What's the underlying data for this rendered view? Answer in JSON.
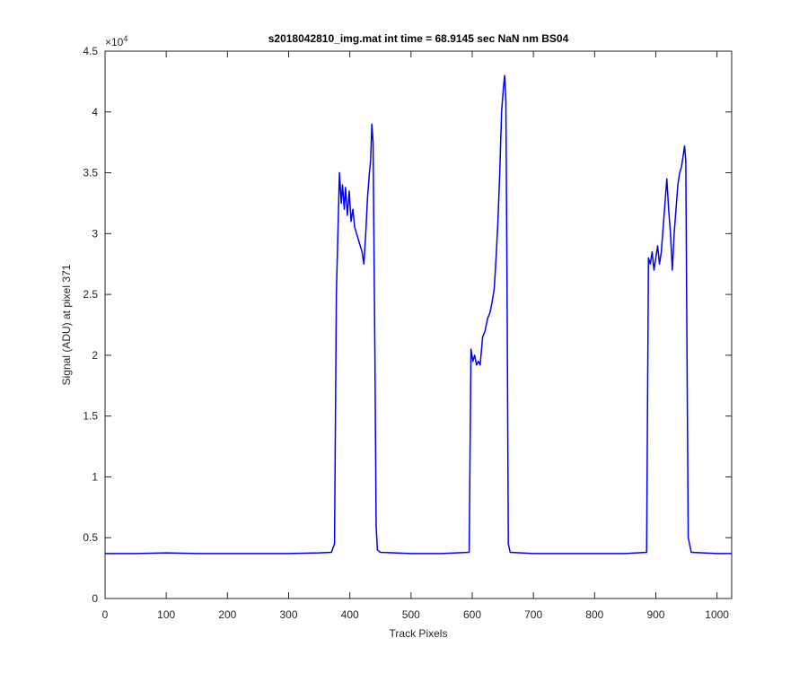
{
  "chart_data": {
    "type": "line",
    "title": "s2018042810_img.mat int time = 68.9145 sec  NaN nm BS04",
    "x_label": "Track Pixels",
    "y_label": "Signal (ADU) at pixel 371",
    "y_multiplier": {
      "base": "×10",
      "exponent": "4"
    },
    "xlim": [
      0,
      1024
    ],
    "ylim": [
      0,
      4.5
    ],
    "xticks": [
      0,
      100,
      200,
      300,
      400,
      500,
      600,
      700,
      800,
      900,
      1000
    ],
    "yticks": [
      0,
      0.5,
      1,
      1.5,
      2,
      2.5,
      3,
      3.5,
      4,
      4.5
    ],
    "grid": false,
    "series": [
      {
        "color": "#0000ff",
        "x": [
          0,
          50,
          100,
          150,
          200,
          250,
          300,
          350,
          370,
          375,
          378,
          381,
          383,
          386,
          388,
          391,
          393,
          396,
          399,
          402,
          405,
          408,
          411,
          414,
          417,
          420,
          423,
          426,
          429,
          432,
          434,
          436,
          438,
          441,
          443,
          445,
          450,
          500,
          550,
          595,
          598,
          601,
          604,
          607,
          610,
          613,
          617,
          621,
          625,
          629,
          633,
          636,
          639,
          642,
          645,
          648,
          651,
          653,
          655,
          657,
          659,
          662,
          700,
          750,
          800,
          850,
          885,
          888,
          891,
          894,
          897,
          900,
          903,
          906,
          909,
          912,
          915,
          918,
          921,
          924,
          927,
          930,
          933,
          936,
          939,
          942,
          945,
          947,
          949,
          951,
          953,
          958,
          1000,
          1024
        ],
        "values": [
          0.37,
          0.37,
          0.375,
          0.37,
          0.37,
          0.37,
          0.37,
          0.375,
          0.38,
          0.45,
          2.5,
          3.1,
          3.5,
          3.25,
          3.4,
          3.2,
          3.38,
          3.15,
          3.35,
          3.1,
          3.2,
          3.05,
          3.0,
          2.95,
          2.9,
          2.85,
          2.75,
          3.0,
          3.3,
          3.5,
          3.6,
          3.9,
          3.75,
          2.0,
          0.6,
          0.4,
          0.38,
          0.37,
          0.37,
          0.38,
          2.05,
          1.95,
          2.0,
          1.92,
          1.95,
          1.92,
          2.15,
          2.2,
          2.3,
          2.35,
          2.45,
          2.55,
          2.8,
          3.1,
          3.5,
          4.0,
          4.2,
          4.3,
          4.1,
          2.5,
          0.45,
          0.38,
          0.37,
          0.37,
          0.37,
          0.37,
          0.38,
          2.8,
          2.75,
          2.85,
          2.7,
          2.8,
          2.9,
          2.75,
          2.85,
          3.05,
          3.25,
          3.45,
          3.2,
          3.0,
          2.7,
          3.0,
          3.2,
          3.4,
          3.5,
          3.55,
          3.65,
          3.72,
          3.6,
          2.0,
          0.5,
          0.38,
          0.37,
          0.37
        ]
      }
    ]
  }
}
